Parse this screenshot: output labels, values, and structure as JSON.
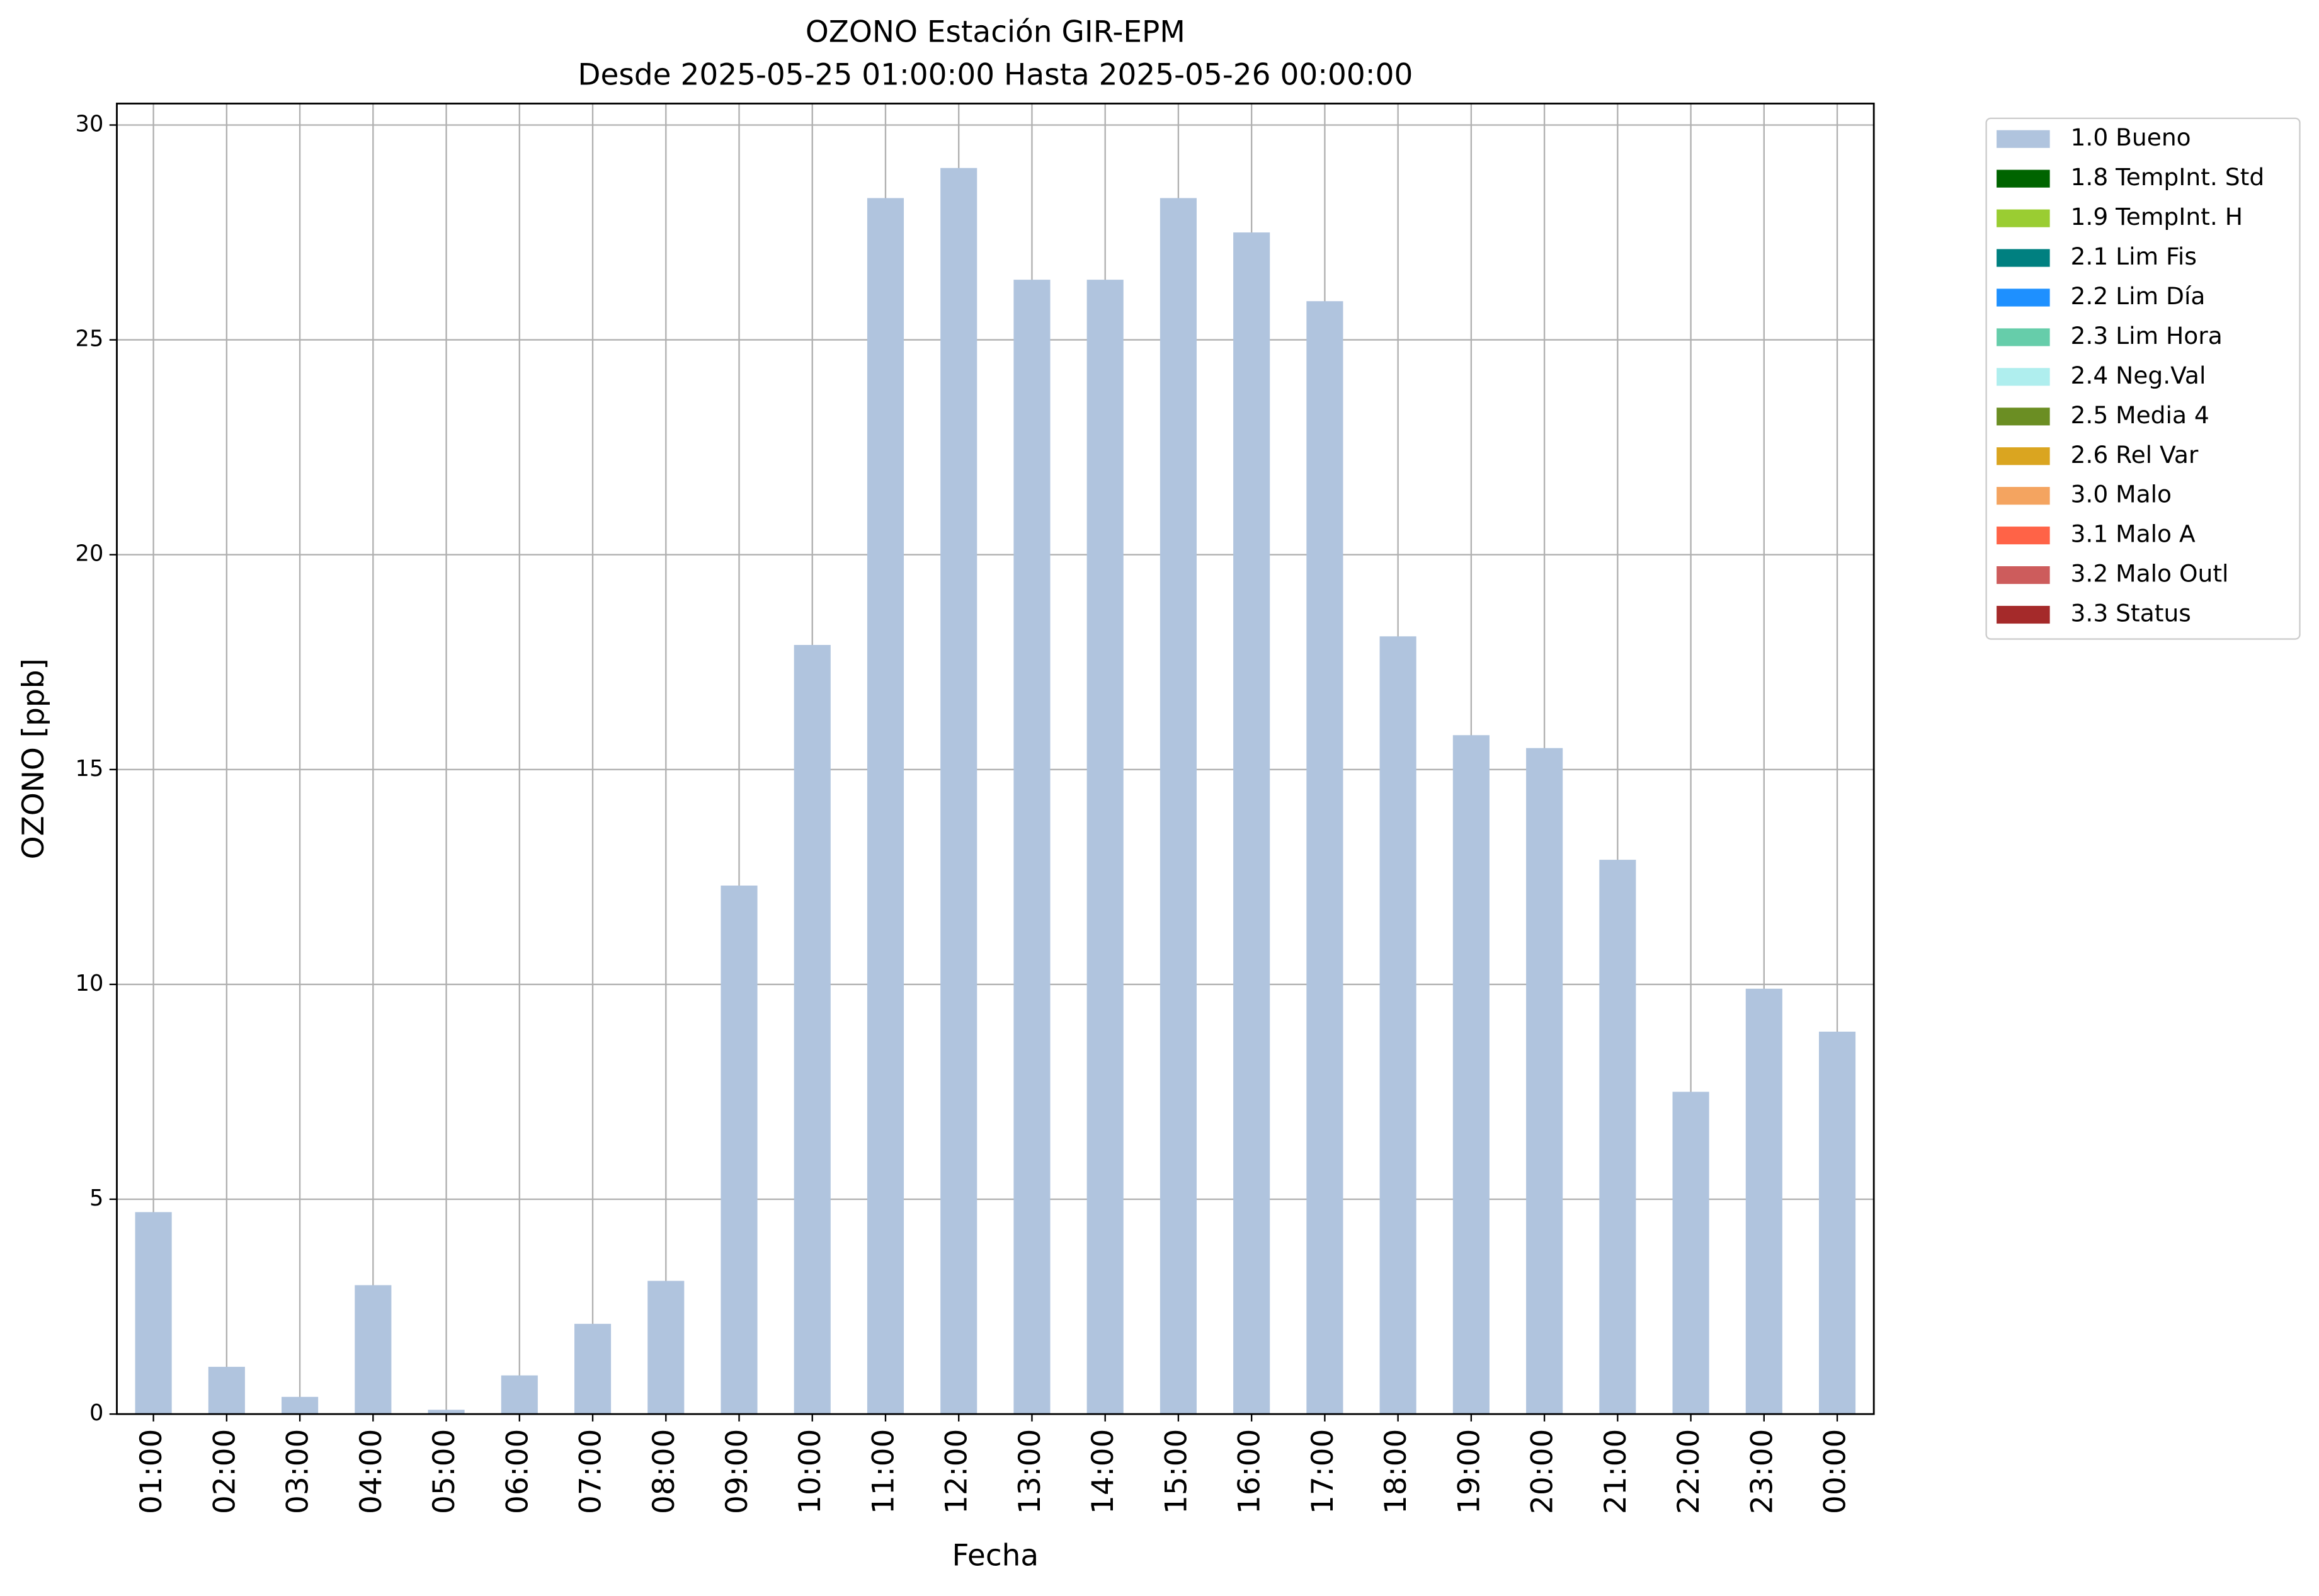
{
  "chart_data": {
    "type": "bar",
    "stacked": true,
    "title": "OZONO Estación GIR-EPM",
    "subtitle": "Desde 2025-05-25 01:00:00 Hasta 2025-05-26 00:00:00",
    "x_label": "Fecha",
    "y_label": "OZONO [ppb]",
    "categories": [
      "01:00",
      "02:00",
      "03:00",
      "04:00",
      "05:00",
      "06:00",
      "07:00",
      "08:00",
      "09:00",
      "10:00",
      "11:00",
      "12:00",
      "13:00",
      "14:00",
      "15:00",
      "16:00",
      "17:00",
      "18:00",
      "19:00",
      "20:00",
      "21:00",
      "22:00",
      "23:00",
      "00:00"
    ],
    "series": [
      {
        "name": "1.0 Bueno",
        "color": "#b0c4de",
        "values": [
          4.7,
          1.1,
          0.4,
          3.0,
          0.1,
          0.9,
          2.1,
          3.1,
          12.3,
          17.9,
          28.3,
          29.0,
          26.4,
          26.4,
          28.3,
          27.5,
          25.9,
          18.1,
          15.8,
          15.5,
          12.9,
          7.5,
          9.9,
          8.9
        ]
      },
      {
        "name": "1.8 TempInt. Std",
        "color": "#006400",
        "values": [
          null,
          null,
          null,
          null,
          null,
          null,
          null,
          null,
          null,
          null,
          null,
          null,
          null,
          null,
          null,
          null,
          null,
          null,
          null,
          null,
          null,
          null,
          null,
          null
        ]
      },
      {
        "name": "1.9 TempInt. H",
        "color": "#9acd32",
        "values": [
          null,
          null,
          null,
          null,
          null,
          null,
          null,
          null,
          null,
          null,
          null,
          null,
          null,
          null,
          null,
          null,
          null,
          null,
          null,
          null,
          null,
          null,
          null,
          null
        ]
      },
      {
        "name": "2.1 Lim Fis",
        "color": "#008080",
        "values": [
          null,
          null,
          null,
          null,
          null,
          null,
          null,
          null,
          null,
          null,
          null,
          null,
          null,
          null,
          null,
          null,
          null,
          null,
          null,
          null,
          null,
          null,
          null,
          null
        ]
      },
      {
        "name": "2.2 Lim Día",
        "color": "#1e90ff",
        "values": [
          null,
          null,
          null,
          null,
          null,
          null,
          null,
          null,
          null,
          null,
          null,
          null,
          null,
          null,
          null,
          null,
          null,
          null,
          null,
          null,
          null,
          null,
          null,
          null
        ]
      },
      {
        "name": "2.3 Lim Hora",
        "color": "#66cdaa",
        "values": [
          null,
          null,
          null,
          null,
          null,
          null,
          null,
          null,
          null,
          null,
          null,
          null,
          null,
          null,
          null,
          null,
          null,
          null,
          null,
          null,
          null,
          null,
          null,
          null
        ]
      },
      {
        "name": "2.4 Neg.Val",
        "color": "#afeeee",
        "values": [
          null,
          null,
          null,
          null,
          null,
          null,
          null,
          null,
          null,
          null,
          null,
          null,
          null,
          null,
          null,
          null,
          null,
          null,
          null,
          null,
          null,
          null,
          null,
          null
        ]
      },
      {
        "name": "2.5 Media 4",
        "color": "#6b8e23",
        "values": [
          null,
          null,
          null,
          null,
          null,
          null,
          null,
          null,
          null,
          null,
          null,
          null,
          null,
          null,
          null,
          null,
          null,
          null,
          null,
          null,
          null,
          null,
          null,
          null
        ]
      },
      {
        "name": "2.6 Rel Var",
        "color": "#daa520",
        "values": [
          null,
          null,
          null,
          null,
          null,
          null,
          null,
          null,
          null,
          null,
          null,
          null,
          null,
          null,
          null,
          null,
          null,
          null,
          null,
          null,
          null,
          null,
          null,
          null
        ]
      },
      {
        "name": "3.0 Malo",
        "color": "#f4a460",
        "values": [
          null,
          null,
          null,
          null,
          null,
          null,
          null,
          null,
          null,
          null,
          null,
          null,
          null,
          null,
          null,
          null,
          null,
          null,
          null,
          null,
          null,
          null,
          null,
          null
        ]
      },
      {
        "name": "3.1 Malo A",
        "color": "#ff6347",
        "values": [
          null,
          null,
          null,
          null,
          null,
          null,
          null,
          null,
          null,
          null,
          null,
          null,
          null,
          null,
          null,
          null,
          null,
          null,
          null,
          null,
          null,
          null,
          null,
          null
        ]
      },
      {
        "name": "3.2 Malo Outl",
        "color": "#cd5c5c",
        "values": [
          null,
          null,
          null,
          null,
          null,
          null,
          null,
          null,
          null,
          null,
          null,
          null,
          null,
          null,
          null,
          null,
          null,
          null,
          null,
          null,
          null,
          null,
          null,
          null
        ]
      },
      {
        "name": "3.3 Status",
        "color": "#a52a2a",
        "values": [
          null,
          null,
          null,
          null,
          null,
          null,
          null,
          null,
          null,
          null,
          null,
          null,
          null,
          null,
          null,
          null,
          null,
          null,
          null,
          null,
          null,
          null,
          null,
          null
        ]
      }
    ],
    "ylim": [
      0,
      30.5
    ],
    "yticks": [
      0,
      5,
      10,
      15,
      20,
      25,
      30
    ],
    "grid": true,
    "legend": "outside-right"
  }
}
